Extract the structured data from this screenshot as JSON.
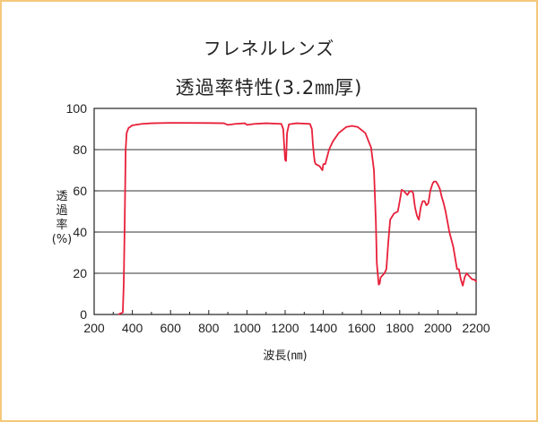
{
  "titles": {
    "line1": "フレネルレンズ",
    "line2": "透過率特性(3.2㎜厚)"
  },
  "colors": {
    "frame": "#f3c87a",
    "curve": "#e8203a",
    "axis": "#222222"
  },
  "chart_data": {
    "type": "line",
    "title": "フレネルレンズ 透過率特性(3.2㎜厚)",
    "xlabel": "波長(㎚)",
    "ylabel": "透過率(%)",
    "ylabel_lines": [
      "透",
      "過",
      "率",
      "(%)"
    ],
    "xlim": [
      200,
      2200
    ],
    "ylim": [
      0,
      100
    ],
    "xticks": [
      200,
      400,
      600,
      800,
      1000,
      1200,
      1400,
      1600,
      1800,
      2000,
      2200
    ],
    "yticks": [
      0,
      20,
      40,
      60,
      80,
      100
    ],
    "grid": "horizontal",
    "series": [
      {
        "x": [
          330,
          350,
          355,
          360,
          365,
          370,
          380,
          400,
          450,
          500,
          600,
          800,
          880,
          900,
          940,
          990,
          1000,
          1040,
          1100,
          1180,
          1190,
          1195,
          1200,
          1205,
          1210,
          1220,
          1260,
          1330,
          1340,
          1345,
          1350,
          1355,
          1360,
          1380,
          1395,
          1400,
          1410,
          1430,
          1450,
          1480,
          1520,
          1550,
          1580,
          1620,
          1650,
          1665,
          1675,
          1680,
          1690,
          1695,
          1700,
          1710,
          1720,
          1730,
          1740,
          1750,
          1760,
          1770,
          1790,
          1800,
          1810,
          1820,
          1830,
          1840,
          1850,
          1860,
          1870,
          1880,
          1890,
          1900,
          1910,
          1920,
          1930,
          1940,
          1950,
          1960,
          1970,
          1975,
          1980,
          1990,
          2000,
          2010,
          2020,
          2030,
          2040,
          2060,
          2080,
          2100,
          2110,
          2120,
          2130,
          2140,
          2150,
          2160,
          2170,
          2180,
          2190,
          2200
        ],
        "y": [
          0.2,
          1.0,
          15,
          45,
          80,
          88,
          90.5,
          91.8,
          92.5,
          92.8,
          93.0,
          92.9,
          92.8,
          92.0,
          92.5,
          92.8,
          92.0,
          92.5,
          92.8,
          92.5,
          90,
          82,
          75,
          74.5,
          88,
          92.3,
          92.8,
          92.5,
          90,
          83,
          78,
          74,
          73,
          72,
          70,
          73,
          73,
          80,
          84,
          88,
          91,
          91.5,
          91,
          88,
          81,
          70,
          45,
          25,
          14.5,
          15,
          18,
          19,
          20,
          22,
          35,
          46,
          47.5,
          49,
          50,
          55,
          60.5,
          60,
          59,
          58,
          59.5,
          60,
          59,
          52,
          48,
          46,
          52,
          55,
          55,
          53,
          54,
          60,
          63,
          64,
          64.5,
          64.5,
          63,
          61,
          57,
          54,
          50,
          40,
          33,
          22,
          22,
          17,
          14,
          18,
          20,
          19,
          18,
          17,
          17,
          16
        ]
      }
    ]
  }
}
